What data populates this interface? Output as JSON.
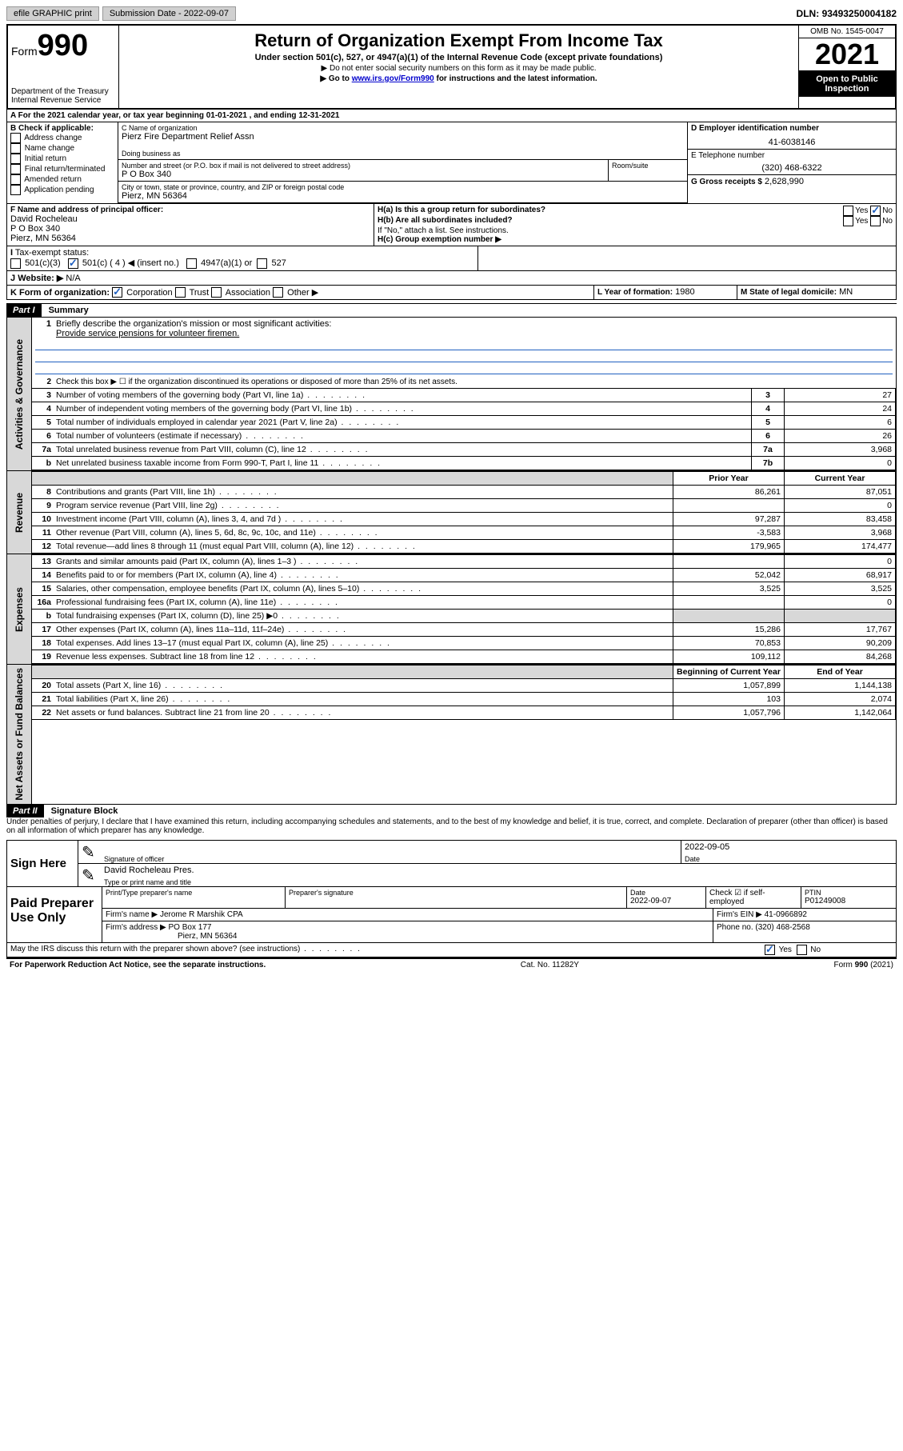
{
  "topbar": {
    "efile": "efile GRAPHIC print",
    "submission_label": "Submission Date -",
    "submission_date": "2022-09-07",
    "dln_label": "DLN:",
    "dln": "93493250004182"
  },
  "header": {
    "form_prefix": "Form",
    "form_num": "990",
    "dept": "Department of the Treasury",
    "irs": "Internal Revenue Service",
    "title": "Return of Organization Exempt From Income Tax",
    "subtitle": "Under section 501(c), 527, or 4947(a)(1) of the Internal Revenue Code (except private foundations)",
    "note1": "▶ Do not enter social security numbers on this form as it may be made public.",
    "note2_pre": "▶ Go to ",
    "note2_link": "www.irs.gov/Form990",
    "note2_post": " for instructions and the latest information.",
    "omb": "OMB No. 1545-0047",
    "year": "2021",
    "open": "Open to Public Inspection"
  },
  "sectionA": {
    "line": "A For the 2021 calendar year, or tax year beginning 01-01-2021    , and ending 12-31-2021",
    "check_label": "B Check if applicable:",
    "checks": [
      "Address change",
      "Name change",
      "Initial return",
      "Final return/terminated",
      "Amended return",
      "Application pending"
    ],
    "c_name_label": "C Name of organization",
    "c_name": "Pierz Fire Department Relief Assn",
    "dba_label": "Doing business as",
    "dba": "",
    "street_label": "Number and street (or P.O. box if mail is not delivered to street address)",
    "room_label": "Room/suite",
    "street": "P O Box 340",
    "city_label": "City or town, state or province, country, and ZIP or foreign postal code",
    "city": "Pierz, MN  56364",
    "d_label": "D Employer identification number",
    "d_ein": "41-6038146",
    "e_label": "E Telephone number",
    "e_phone": "(320) 468-6322",
    "g_label": "G Gross receipts $",
    "g_val": "2,628,990",
    "f_label": "F Name and address of principal officer:",
    "f_name": "David Rocheleau",
    "f_street": "P O Box 340",
    "f_city": "Pierz, MN  56364",
    "ha_label": "H(a) Is this a group return for subordinates?",
    "hb_label": "H(b) Are all subordinates included?",
    "h_note": "If \"No,\" attach a list. See instructions.",
    "hc_label": "H(c) Group exemption number ▶",
    "yes": "Yes",
    "no": "No",
    "i_label": "I",
    "tax_exempt": "Tax-exempt status:",
    "i_501c3": "501(c)(3)",
    "i_501c": "501(c) ( 4 ) ◀ (insert no.)",
    "i_4947": "4947(a)(1) or",
    "i_527": "527",
    "j_label": "J",
    "website_label": "Website: ▶",
    "website": "N/A",
    "k_label": "K Form of organization:",
    "k_corp": "Corporation",
    "k_trust": "Trust",
    "k_assoc": "Association",
    "k_other": "Other ▶",
    "l_label": "L Year of formation:",
    "l_val": "1980",
    "m_label": "M State of legal domicile:",
    "m_val": "MN"
  },
  "part1": {
    "header": "Part I",
    "title": "Summary",
    "q1": "Briefly describe the organization's mission or most significant activities:",
    "mission": "Provide service pensions for volunteer firemen.",
    "q2": "Check this box ▶ ☐  if the organization discontinued its operations or disposed of more than 25% of its net assets.",
    "sideA": "Activities & Governance",
    "sideB": "Revenue",
    "sideC": "Expenses",
    "sideD": "Net Assets or Fund Balances",
    "rows_gov": [
      {
        "n": "3",
        "t": "Number of voting members of the governing body (Part VI, line 1a)",
        "box": "3",
        "v": "27"
      },
      {
        "n": "4",
        "t": "Number of independent voting members of the governing body (Part VI, line 1b)",
        "box": "4",
        "v": "24"
      },
      {
        "n": "5",
        "t": "Total number of individuals employed in calendar year 2021 (Part V, line 2a)",
        "box": "5",
        "v": "6"
      },
      {
        "n": "6",
        "t": "Total number of volunteers (estimate if necessary)",
        "box": "6",
        "v": "26"
      },
      {
        "n": "7a",
        "t": "Total unrelated business revenue from Part VIII, column (C), line 12",
        "box": "7a",
        "v": "3,968"
      },
      {
        "n": "b",
        "t": "Net unrelated business taxable income from Form 990-T, Part I, line 11",
        "box": "7b",
        "v": "0"
      }
    ],
    "col_prior": "Prior Year",
    "col_current": "Current Year",
    "rows_rev": [
      {
        "n": "8",
        "t": "Contributions and grants (Part VIII, line 1h)",
        "p": "86,261",
        "c": "87,051"
      },
      {
        "n": "9",
        "t": "Program service revenue (Part VIII, line 2g)",
        "p": "",
        "c": "0"
      },
      {
        "n": "10",
        "t": "Investment income (Part VIII, column (A), lines 3, 4, and 7d )",
        "p": "97,287",
        "c": "83,458"
      },
      {
        "n": "11",
        "t": "Other revenue (Part VIII, column (A), lines 5, 6d, 8c, 9c, 10c, and 11e)",
        "p": "-3,583",
        "c": "3,968"
      },
      {
        "n": "12",
        "t": "Total revenue—add lines 8 through 11 (must equal Part VIII, column (A), line 12)",
        "p": "179,965",
        "c": "174,477"
      }
    ],
    "rows_exp": [
      {
        "n": "13",
        "t": "Grants and similar amounts paid (Part IX, column (A), lines 1–3 )",
        "p": "",
        "c": "0"
      },
      {
        "n": "14",
        "t": "Benefits paid to or for members (Part IX, column (A), line 4)",
        "p": "52,042",
        "c": "68,917"
      },
      {
        "n": "15",
        "t": "Salaries, other compensation, employee benefits (Part IX, column (A), lines 5–10)",
        "p": "3,525",
        "c": "3,525"
      },
      {
        "n": "16a",
        "t": "Professional fundraising fees (Part IX, column (A), line 11e)",
        "p": "",
        "c": "0"
      },
      {
        "n": "b",
        "t": "Total fundraising expenses (Part IX, column (D), line 25) ▶0",
        "p": "gray",
        "c": "gray"
      },
      {
        "n": "17",
        "t": "Other expenses (Part IX, column (A), lines 11a–11d, 11f–24e)",
        "p": "15,286",
        "c": "17,767"
      },
      {
        "n": "18",
        "t": "Total expenses. Add lines 13–17 (must equal Part IX, column (A), line 25)",
        "p": "70,853",
        "c": "90,209"
      },
      {
        "n": "19",
        "t": "Revenue less expenses. Subtract line 18 from line 12",
        "p": "109,112",
        "c": "84,268"
      }
    ],
    "col_begin": "Beginning of Current Year",
    "col_end": "End of Year",
    "rows_net": [
      {
        "n": "20",
        "t": "Total assets (Part X, line 16)",
        "p": "1,057,899",
        "c": "1,144,138"
      },
      {
        "n": "21",
        "t": "Total liabilities (Part X, line 26)",
        "p": "103",
        "c": "2,074"
      },
      {
        "n": "22",
        "t": "Net assets or fund balances. Subtract line 21 from line 20",
        "p": "1,057,796",
        "c": "1,142,064"
      }
    ]
  },
  "part2": {
    "header": "Part II",
    "title": "Signature Block",
    "decl": "Under penalties of perjury, I declare that I have examined this return, including accompanying schedules and statements, and to the best of my knowledge and belief, it is true, correct, and complete. Declaration of preparer (other than officer) is based on all information of which preparer has any knowledge.",
    "sign_here": "Sign Here",
    "sig_officer": "Signature of officer",
    "sig_date": "2022-09-05",
    "date_label": "Date",
    "officer_name": "David Rocheleau Pres.",
    "type_name": "Type or print name and title",
    "paid": "Paid Preparer Use Only",
    "prep_name_label": "Print/Type preparer's name",
    "prep_sig_label": "Preparer's signature",
    "prep_date_label": "Date",
    "prep_date": "2022-09-07",
    "check_self": "Check ☑ if self-employed",
    "ptin_label": "PTIN",
    "ptin": "P01249008",
    "firm_name_label": "Firm's name    ▶",
    "firm_name": "Jerome R Marshik CPA",
    "firm_ein_label": "Firm's EIN ▶",
    "firm_ein": "41-0966892",
    "firm_addr_label": "Firm's address ▶",
    "firm_addr1": "PO Box 177",
    "firm_addr2": "Pierz, MN  56364",
    "phone_label": "Phone no.",
    "phone": "(320) 468-2568",
    "may_irs": "May the IRS discuss this return with the preparer shown above? (see instructions)"
  },
  "footer": {
    "paperwork": "For Paperwork Reduction Act Notice, see the separate instructions.",
    "cat": "Cat. No. 11282Y",
    "form": "Form 990 (2021)"
  }
}
